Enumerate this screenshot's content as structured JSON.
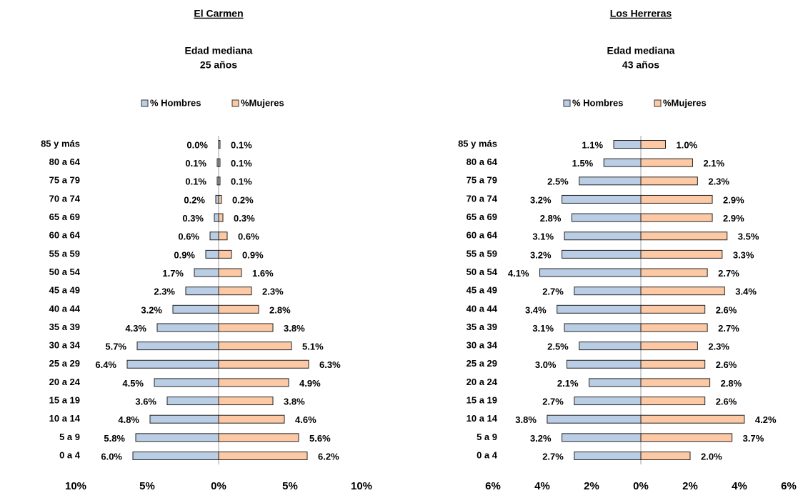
{
  "chart_data": [
    {
      "type": "pyramid",
      "title": "El Carmen",
      "subtitle": [
        "Edad mediana",
        "25 años"
      ],
      "categories": [
        "85 y más",
        "80 a 64",
        "75 a 79",
        "70 a 74",
        "65 a 69",
        "60 a 64",
        "55 a 59",
        "50 a 54",
        "45 a 49",
        "40 a 44",
        "35 a 39",
        "30 a 34",
        "25 a 29",
        "20 a 24",
        "15 a 19",
        "10 a 14",
        "5 a 9",
        "0 a 4"
      ],
      "series": [
        {
          "name": "% Hombres",
          "color": "#b9cde5",
          "values": [
            0.0,
            0.1,
            0.1,
            0.2,
            0.3,
            0.6,
            0.9,
            1.7,
            2.3,
            3.2,
            4.3,
            5.7,
            6.4,
            4.5,
            3.6,
            4.8,
            5.8,
            6.0
          ],
          "value_labels": [
            "0.0%",
            "0.1%",
            "0.1%",
            "0.2%",
            "0.3%",
            "0.6%",
            "0.9%",
            "1.7%",
            "2.3%",
            "3.2%",
            "4.3%",
            "5.7%",
            "6.4%",
            "4.5%",
            "3.6%",
            "4.8%",
            "5.8%",
            "6.0%"
          ]
        },
        {
          "name": "%Mujeres",
          "color": "#fcc9a4",
          "values": [
            0.1,
            0.1,
            0.1,
            0.2,
            0.3,
            0.6,
            0.9,
            1.6,
            2.3,
            2.8,
            3.8,
            5.1,
            6.3,
            4.9,
            3.8,
            4.6,
            5.6,
            6.2
          ],
          "value_labels": [
            "0.1%",
            "0.1%",
            "0.1%",
            "0.2%",
            "0.3%",
            "0.6%",
            "0.9%",
            "1.6%",
            "2.3%",
            "2.8%",
            "3.8%",
            "5.1%",
            "6.3%",
            "4.9%",
            "3.8%",
            "4.6%",
            "5.6%",
            "6.2%"
          ]
        }
      ],
      "xlim": [
        -10,
        10
      ],
      "xticks": [
        {
          "value": -10,
          "label": "10%"
        },
        {
          "value": -5,
          "label": "5%"
        },
        {
          "value": 0,
          "label": "0%"
        },
        {
          "value": 5,
          "label": "5%"
        },
        {
          "value": 10,
          "label": "10%"
        }
      ]
    },
    {
      "type": "pyramid",
      "title": "Los Herreras",
      "subtitle": [
        "Edad mediana",
        "43 años"
      ],
      "categories": [
        "85 y más",
        "80 a 64",
        "75 a 79",
        "70 a 74",
        "65 a 69",
        "60 a 64",
        "55 a 59",
        "50 a 54",
        "45 a 49",
        "40 a 44",
        "35 a 39",
        "30 a 34",
        "25 a 29",
        "20 a 24",
        "15 a 19",
        "10 a 14",
        "5 a 9",
        "0 a 4"
      ],
      "series": [
        {
          "name": "% Hombres",
          "color": "#b9cde5",
          "values": [
            1.1,
            1.5,
            2.5,
            3.2,
            2.8,
            3.1,
            3.2,
            4.1,
            2.7,
            3.4,
            3.1,
            2.5,
            3.0,
            2.1,
            2.7,
            3.8,
            3.2,
            2.7
          ],
          "value_labels": [
            "1.1%",
            "1.5%",
            "2.5%",
            "3.2%",
            "2.8%",
            "3.1%",
            "3.2%",
            "4.1%",
            "2.7%",
            "3.4%",
            "3.1%",
            "2.5%",
            "3.0%",
            "2.1%",
            "2.7%",
            "3.8%",
            "3.2%",
            "2.7%"
          ]
        },
        {
          "name": "%Mujeres",
          "color": "#fcc9a4",
          "values": [
            1.0,
            2.1,
            2.3,
            2.9,
            2.9,
            3.5,
            3.3,
            2.7,
            3.4,
            2.6,
            2.7,
            2.3,
            2.6,
            2.8,
            2.6,
            4.2,
            3.7,
            2.0
          ],
          "value_labels": [
            "1.0%",
            "2.1%",
            "2.3%",
            "2.9%",
            "2.9%",
            "3.5%",
            "3.3%",
            "2.7%",
            "3.4%",
            "2.6%",
            "2.7%",
            "2.3%",
            "2.6%",
            "2.8%",
            "2.6%",
            "4.2%",
            "3.7%",
            "2.0%"
          ]
        }
      ],
      "xlim": [
        -6,
        6
      ],
      "xticks": [
        {
          "value": -6,
          "label": "6%"
        },
        {
          "value": -4,
          "label": "4%"
        },
        {
          "value": -2,
          "label": "2%"
        },
        {
          "value": 0,
          "label": "0%"
        },
        {
          "value": 2,
          "label": "2%"
        },
        {
          "value": 4,
          "label": "4%"
        },
        {
          "value": 6,
          "label": "6%"
        }
      ]
    }
  ]
}
